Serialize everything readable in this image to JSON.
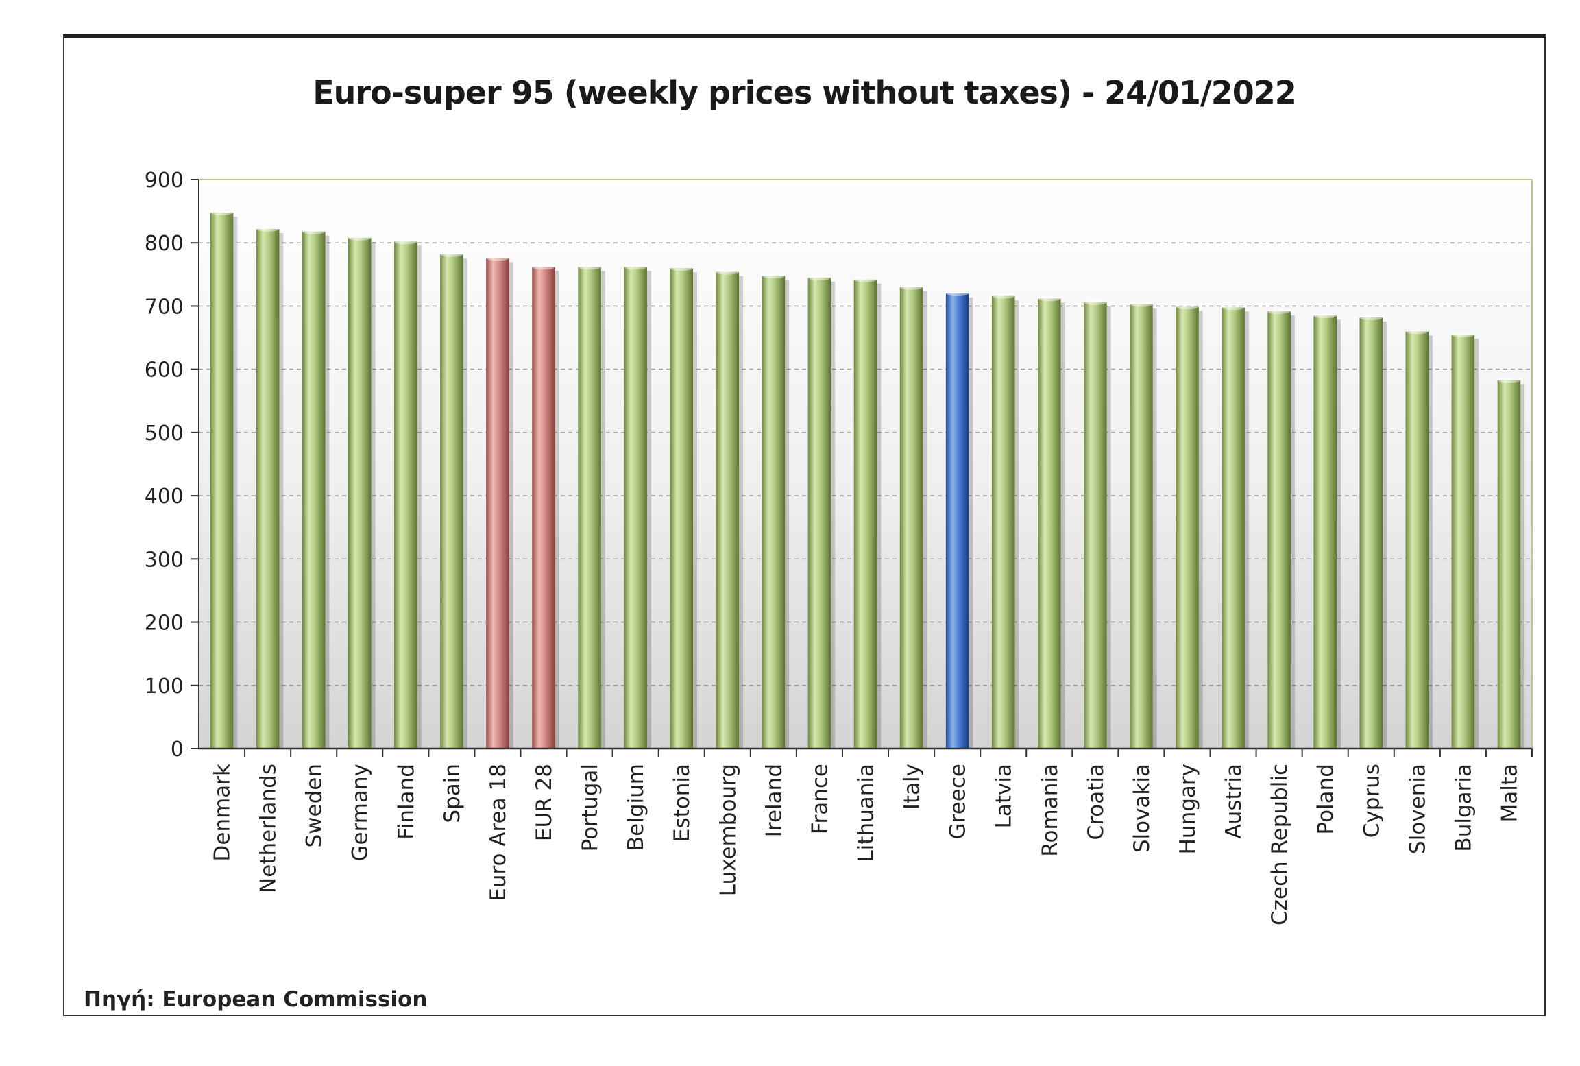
{
  "chart_data": {
    "type": "bar",
    "title": "Euro-super 95 (weekly prices without taxes) - 24/01/2022",
    "xlabel": "",
    "ylabel": "",
    "ylim": [
      0,
      900
    ],
    "yticks": [
      0,
      100,
      200,
      300,
      400,
      500,
      600,
      700,
      800,
      900
    ],
    "grid": true,
    "categories": [
      "Denmark",
      "Netherlands",
      "Sweden",
      "Germany",
      "Finland",
      "Spain",
      "Euro Area 18",
      "EUR 28",
      "Portugal",
      "Belgium",
      "Estonia",
      "Luxembourg",
      "Ireland",
      "France",
      "Lithuania",
      "Italy",
      "Greece",
      "Latvia",
      "Romania",
      "Croatia",
      "Slovakia",
      "Hungary",
      "Austria",
      "Czech Republic",
      "Poland",
      "Cyprus",
      "Slovenia",
      "Bulgaria",
      "Malta"
    ],
    "values": [
      848,
      822,
      818,
      808,
      802,
      782,
      776,
      762,
      762,
      762,
      760,
      754,
      748,
      745,
      742,
      730,
      720,
      716,
      712,
      706,
      703,
      699,
      698,
      692,
      685,
      682,
      660,
      655,
      583
    ],
    "bar_colors": {
      "default": "#a9c27a",
      "Euro Area 18": "#cf8a85",
      "EUR 28": "#cf8a85",
      "Greece": "#4f7fcf"
    }
  },
  "source": "Πηγή: European Commission"
}
